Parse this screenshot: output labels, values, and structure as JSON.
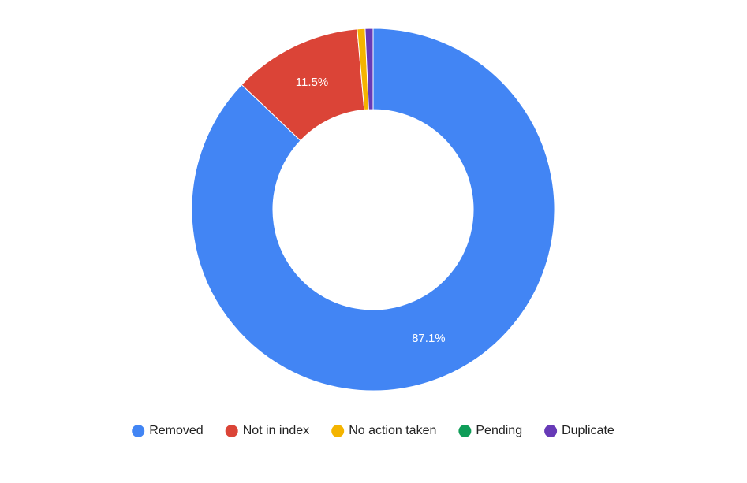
{
  "chart_data": {
    "type": "donut",
    "categories": [
      "Removed",
      "Not in index",
      "No action taken",
      "Pending",
      "Duplicate"
    ],
    "values": [
      87.1,
      11.5,
      0.7,
      0,
      0.7
    ],
    "value_labels": [
      "87.1%",
      "11.5%",
      null,
      null,
      null
    ],
    "colors": [
      "#4285f4",
      "#db4437",
      "#f4b400",
      "#0f9d58",
      "#673ab7"
    ],
    "legend": "bottom"
  }
}
